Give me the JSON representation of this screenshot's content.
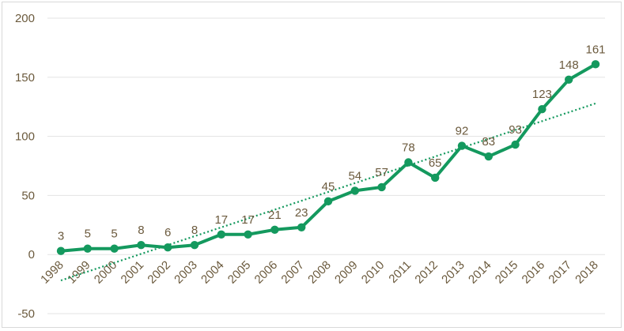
{
  "chart_data": {
    "type": "line",
    "title": "",
    "xlabel": "",
    "ylabel": "",
    "x": [
      "1998",
      "1999",
      "2000",
      "2001",
      "2002",
      "2003",
      "2004",
      "2005",
      "2006",
      "2007",
      "2008",
      "2009",
      "2010",
      "2011",
      "2012",
      "2013",
      "2014",
      "2015",
      "2016",
      "2017",
      "2018"
    ],
    "series": [
      {
        "values": [
          3,
          5,
          5,
          8,
          6,
          8,
          17,
          17,
          21,
          23,
          45,
          54,
          57,
          78,
          65,
          92,
          83,
          93,
          123,
          148,
          161
        ],
        "color": "#14995e",
        "data_labels": true
      }
    ],
    "trendline": {
      "type": "linear",
      "style": "dotted",
      "color": "#14995e"
    },
    "ylim": [
      -50,
      200
    ],
    "yticks": [
      -50,
      0,
      50,
      100,
      150,
      200
    ],
    "grid": true,
    "legend": "none"
  }
}
